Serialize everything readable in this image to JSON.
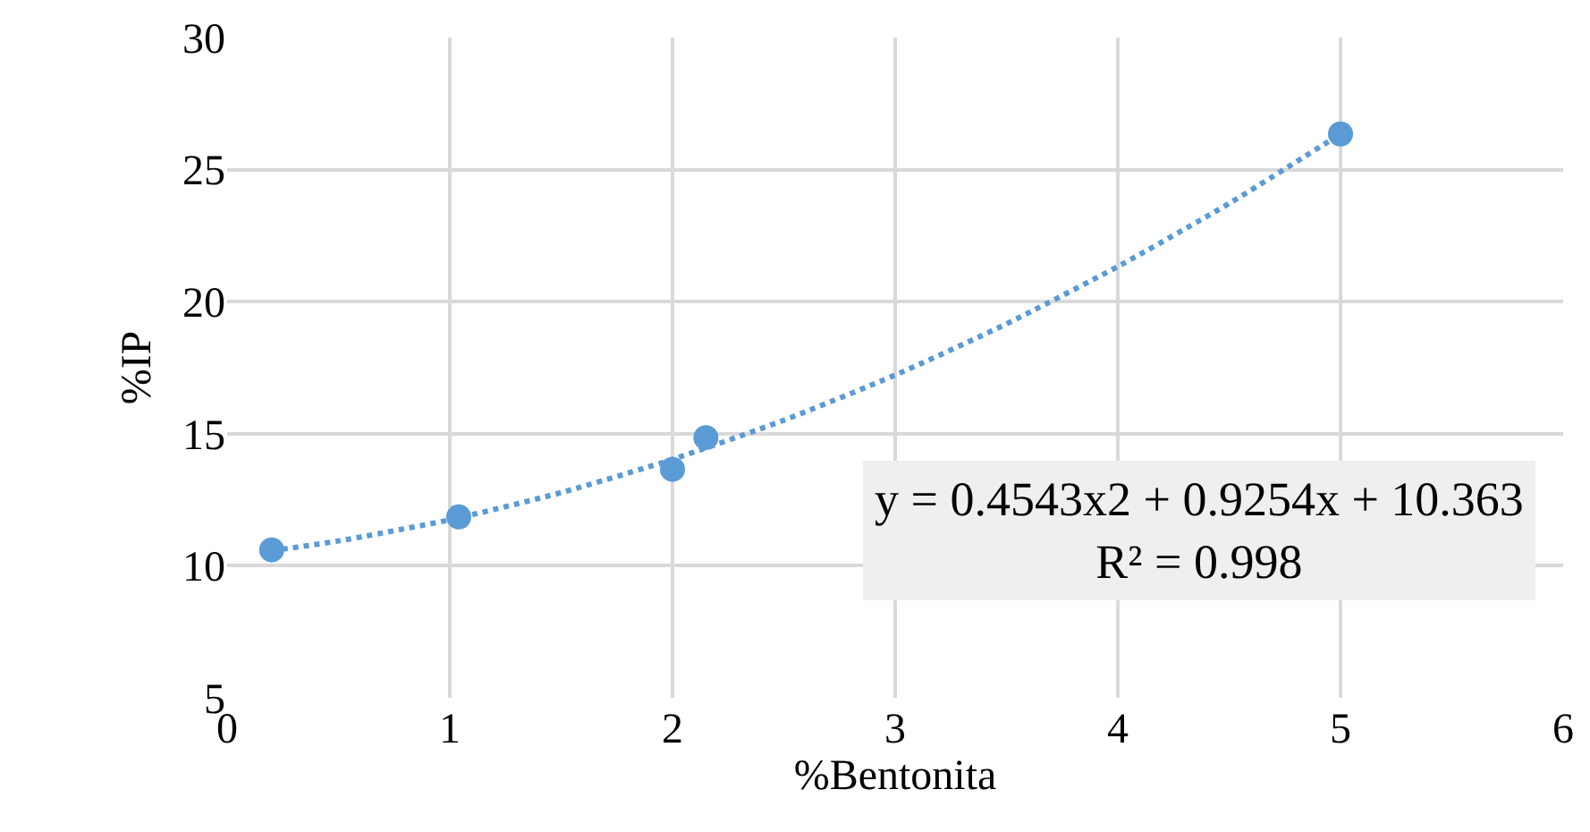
{
  "chart_data": {
    "type": "scatter",
    "xlabel": "%Bentonita",
    "ylabel": "%IP",
    "annotations": [
      "y = 0.4543x2 + 0.9254x + 10.363\nR² = 0.998"
    ],
    "series": [
      {
        "type": "scatter",
        "color": "#5b9bd5",
        "marker": "circle",
        "x": [
          0.2,
          1.04,
          2.0,
          2.15,
          5.0
        ],
        "values": [
          10.6,
          11.85,
          13.65,
          14.85,
          26.35
        ]
      },
      {
        "type": "line",
        "color": "#5b9bd5",
        "marker": "none",
        "line_style": "dotted",
        "x": [
          0.2,
          0.5,
          1,
          1.5,
          2,
          2.5,
          3,
          3.5,
          4,
          4.5,
          5
        ],
        "values": [
          10.57,
          10.94,
          11.74,
          12.77,
          14.03,
          15.51,
          17.22,
          19.16,
          21.33,
          23.72,
          26.35
        ]
      }
    ],
    "xlim": [
      0,
      6
    ],
    "xticks": [
      0,
      1,
      2,
      3,
      4,
      5,
      6
    ],
    "ylim": [
      5,
      30
    ],
    "yticks": [
      5,
      10,
      15,
      20,
      25,
      30
    ],
    "grid": true
  }
}
